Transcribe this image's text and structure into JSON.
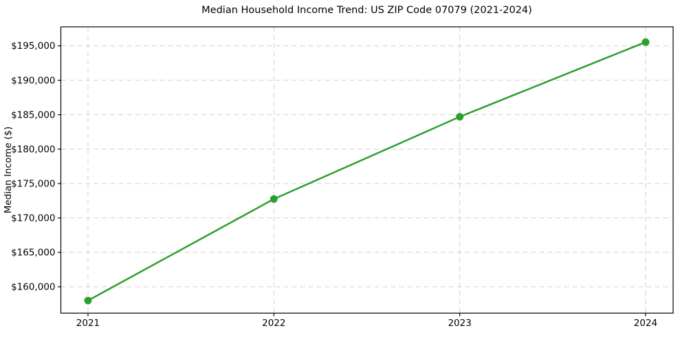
{
  "figure": {
    "title": "Median Household Income Trend: US ZIP Code 07079 (2021-2024)"
  },
  "chart_data": {
    "type": "line",
    "title": "Median Household Income Trend: US ZIP Code 07079 (2021-2024)",
    "xlabel": "",
    "ylabel": "Median Income ($)",
    "x": [
      2021,
      2022,
      2023,
      2024
    ],
    "values": [
      158000,
      172750,
      184700,
      195550
    ],
    "x_tick_labels": [
      "2021",
      "2022",
      "2023",
      "2024"
    ],
    "y_ticks": [
      {
        "value": 160000,
        "label": "$160,000"
      },
      {
        "value": 165000,
        "label": "$165,000"
      },
      {
        "value": 170000,
        "label": "$170,000"
      },
      {
        "value": 175000,
        "label": "$175,000"
      },
      {
        "value": 180000,
        "label": "$180,000"
      },
      {
        "value": 185000,
        "label": "$185,000"
      },
      {
        "value": 190000,
        "label": "$190,000"
      },
      {
        "value": 195000,
        "label": "$195,000"
      }
    ],
    "xlim": [
      2020.854,
      2024.148
    ],
    "ylim": [
      156170,
      197770
    ],
    "grid": true,
    "grid_style": "dashed",
    "legend_position": "none",
    "line_color": "#2ca02c",
    "marker": "circle",
    "grid_color": "#cfcfcf",
    "spine_color": "#000000"
  }
}
